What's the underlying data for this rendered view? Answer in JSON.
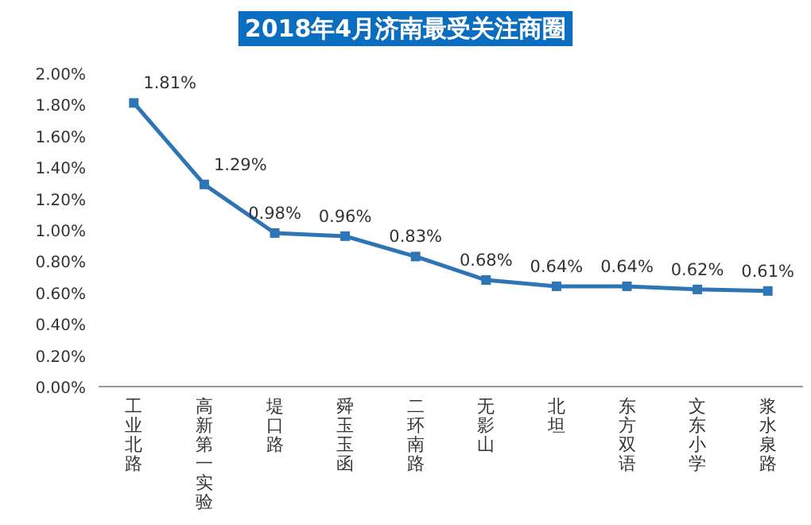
{
  "chart_data": {
    "type": "line",
    "title": "2018年4月济南最受关注商圈",
    "categories": [
      "工业北路",
      "高新第一实验",
      "堤口路",
      "舜玉玉函",
      "二环南路",
      "无影山",
      "北坦",
      "东方双语",
      "文东小学",
      "浆水泉路"
    ],
    "series": [
      {
        "color": "#2e75b6",
        "values": [
          1.81,
          1.29,
          0.98,
          0.96,
          0.83,
          0.68,
          0.64,
          0.64,
          0.62,
          0.61
        ],
        "value_labels": [
          "1.81%",
          "1.29%",
          "0.98%",
          "0.96%",
          "0.83%",
          "0.68%",
          "0.64%",
          "0.64%",
          "0.62%",
          "0.61%"
        ]
      }
    ],
    "ylim": [
      0,
      2
    ],
    "yticks": [
      {
        "value": 0,
        "label": "0.00%"
      },
      {
        "value": 0.2,
        "label": "0.20%"
      },
      {
        "value": 0.4,
        "label": "0.40%"
      },
      {
        "value": 0.6,
        "label": "0.60%"
      },
      {
        "value": 0.8,
        "label": "0.80%"
      },
      {
        "value": 1.0,
        "label": "1.00%"
      },
      {
        "value": 1.2,
        "label": "1.20%"
      },
      {
        "value": 1.4,
        "label": "1.40%"
      },
      {
        "value": 1.6,
        "label": "1.60%"
      },
      {
        "value": 1.8,
        "label": "1.80%"
      },
      {
        "value": 2.0,
        "label": "2.00%"
      }
    ],
    "marker": "square",
    "grid": false
  }
}
